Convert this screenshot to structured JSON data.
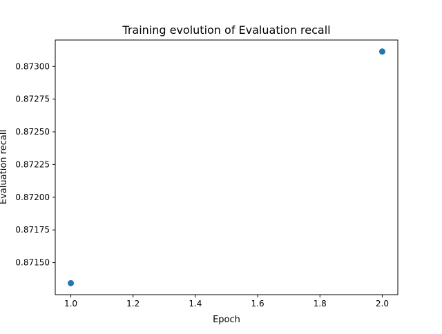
{
  "chart_data": {
    "type": "scatter",
    "title": "Training evolution of Evaluation recall",
    "xlabel": "Epoch",
    "ylabel": "Evaluation recall",
    "x": [
      1.0,
      2.0
    ],
    "y": [
      0.871343,
      0.873114
    ],
    "xlim": [
      0.95,
      2.05
    ],
    "ylim": [
      0.871255,
      0.873202
    ],
    "xticks": [
      1.0,
      1.2,
      1.4,
      1.6,
      1.8,
      2.0
    ],
    "xtick_labels": [
      "1.0",
      "1.2",
      "1.4",
      "1.6",
      "1.8",
      "2.0"
    ],
    "yticks": [
      0.8715,
      0.87175,
      0.872,
      0.87225,
      0.8725,
      0.87275,
      0.873
    ],
    "ytick_labels": [
      "0.87150",
      "0.87175",
      "0.87200",
      "0.87225",
      "0.87250",
      "0.87275",
      "0.87300"
    ],
    "marker_color": "#1f77b4",
    "grid": false,
    "legend": false
  }
}
